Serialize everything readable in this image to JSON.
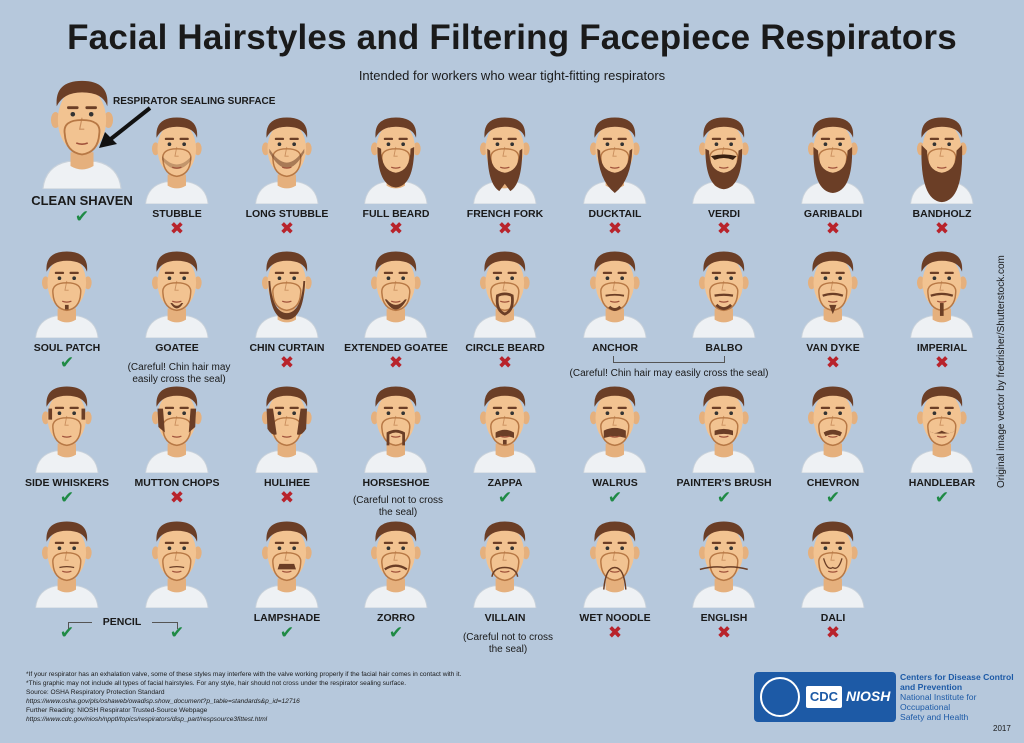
{
  "title": "Facial Hairstyles and Filtering Facepiece Respirators",
  "subtitle": "Intended for workers who wear tight-fitting respirators",
  "seal_label": "RESPIRATOR SEALING SURFACE",
  "credit": "Original image vector by fredrisher/Shutterstock.com",
  "colors": {
    "background": "#b6c8dc",
    "ok": "#1f8a45",
    "no": "#b8232b",
    "skin": "#f2c391",
    "hair": "#6b3e26",
    "shirt": "#eef1f4"
  },
  "marks": {
    "ok": "✔",
    "no": "✖"
  },
  "styles": [
    {
      "name": "CLEAN SHAVEN",
      "ok": true,
      "beard": "none"
    },
    {
      "name": "STUBBLE",
      "ok": false,
      "beard": "stubble"
    },
    {
      "name": "LONG STUBBLE",
      "ok": false,
      "beard": "longstubble"
    },
    {
      "name": "FULL BEARD",
      "ok": false,
      "beard": "full"
    },
    {
      "name": "FRENCH FORK",
      "ok": false,
      "beard": "fork"
    },
    {
      "name": "DUCKTAIL",
      "ok": false,
      "beard": "ducktail"
    },
    {
      "name": "VERDI",
      "ok": false,
      "beard": "verdi"
    },
    {
      "name": "GARIBALDI",
      "ok": false,
      "beard": "garibaldi"
    },
    {
      "name": "BANDHOLZ",
      "ok": false,
      "beard": "bandholz"
    },
    {
      "name": "SOUL PATCH",
      "ok": true,
      "beard": "soul"
    },
    {
      "name": "GOATEE",
      "ok": null,
      "beard": "goatee"
    },
    {
      "name": "CHIN CURTAIN",
      "ok": false,
      "beard": "curtain"
    },
    {
      "name": "EXTENDED GOATEE",
      "ok": false,
      "beard": "extgoatee"
    },
    {
      "name": "CIRCLE BEARD",
      "ok": false,
      "beard": "circle"
    },
    {
      "name": "ANCHOR",
      "ok": null,
      "beard": "anchor"
    },
    {
      "name": "BALBO",
      "ok": null,
      "beard": "balbo"
    },
    {
      "name": "VAN DYKE",
      "ok": false,
      "beard": "vandyke"
    },
    {
      "name": "IMPERIAL",
      "ok": false,
      "beard": "imperial"
    },
    {
      "name": "SIDE WHISKERS",
      "ok": true,
      "beard": "whiskers"
    },
    {
      "name": "MUTTON CHOPS",
      "ok": false,
      "beard": "mutton"
    },
    {
      "name": "HULIHEE",
      "ok": false,
      "beard": "hulihee"
    },
    {
      "name": "HORSESHOE",
      "ok": null,
      "beard": "horseshoe"
    },
    {
      "name": "ZAPPA",
      "ok": true,
      "beard": "zappa"
    },
    {
      "name": "WALRUS",
      "ok": true,
      "beard": "walrus"
    },
    {
      "name": "PAINTER'S BRUSH",
      "ok": true,
      "beard": "brush"
    },
    {
      "name": "CHEVRON",
      "ok": true,
      "beard": "chevron"
    },
    {
      "name": "HANDLEBAR",
      "ok": true,
      "beard": "handlebar"
    },
    {
      "name": "",
      "ok": true,
      "beard": "pencil"
    },
    {
      "name": "",
      "ok": true,
      "beard": "pencil2"
    },
    {
      "name": "LAMPSHADE",
      "ok": true,
      "beard": "lampshade"
    },
    {
      "name": "ZORRO",
      "ok": true,
      "beard": "zorro"
    },
    {
      "name": "VILLAIN",
      "ok": null,
      "beard": "villain"
    },
    {
      "name": "WET NOODLE",
      "ok": false,
      "beard": "noodle"
    },
    {
      "name": "ENGLISH",
      "ok": false,
      "beard": "english"
    },
    {
      "name": "DALI",
      "ok": false,
      "beard": "dali"
    }
  ],
  "notes": {
    "goatee": "(Careful! Chin hair may easily cross the seal)",
    "anchor_balbo": "(Careful! Chin hair may easily cross the seal)",
    "horseshoe": "(Careful not to cross the seal)",
    "villain": "(Careful not to cross the seal)",
    "pencil": "PENCIL"
  },
  "footnotes": [
    "*If your respirator has an exhalation valve, some of these styles may interfere with the valve working properly if the facial hair comes in contact with it.",
    "*This graphic may not include all types of facial hairstyles. For any style, hair should not cross under the respirator sealing surface.",
    "Source: OSHA Respiratory Protection Standard",
    "https://www.osha.gov/pls/oshaweb/owadisp.show_document?p_table=standards&p_id=12716",
    "Further Reading: NIOSH Respirator Trusted-Source Webpage",
    "https://www.cdc.gov/niosh/npptl/topics/respirators/disp_part/respsource3fittest.html"
  ],
  "logo": {
    "cdc": "CDC",
    "niosh": "NIOSH"
  },
  "agency": {
    "line1": "Centers for Disease Control",
    "line2": "and Prevention",
    "line3": "National Institute for Occupational",
    "line4": "Safety and Health"
  },
  "year": "2017"
}
